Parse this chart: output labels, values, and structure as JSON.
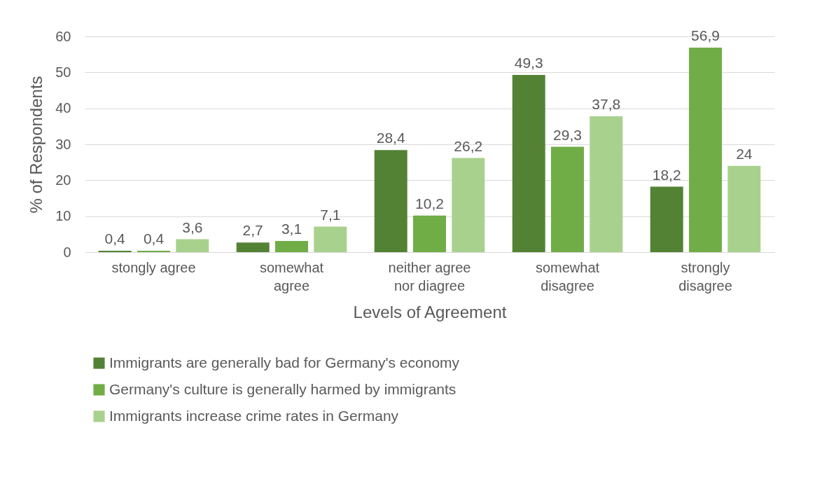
{
  "chart_data": {
    "type": "bar",
    "xlabel": "Levels of Agreement",
    "ylabel": "% of Respondents",
    "categories": [
      "stongly agree",
      "somewhat agree",
      "neither agree nor diagree",
      "somewhat disagree",
      "strongly disagree"
    ],
    "series": [
      {
        "name": "Immigrants are generally bad for Germany's economy",
        "color": "#548235",
        "values": [
          0.4,
          2.7,
          28.4,
          49.3,
          18.2
        ],
        "value_labels": [
          "0,4",
          "2,7",
          "28,4",
          "49,3",
          "18,2"
        ]
      },
      {
        "name": "Germany's culture is generally harmed by immigrants",
        "color": "#70ad47",
        "values": [
          0.4,
          3.1,
          10.2,
          29.3,
          56.9
        ],
        "value_labels": [
          "0,4",
          "3,1",
          "10,2",
          "29,3",
          "56,9"
        ]
      },
      {
        "name": "Immigrants increase crime rates in Germany",
        "color": "#a9d18e",
        "values": [
          3.6,
          7.1,
          26.2,
          37.8,
          24
        ],
        "value_labels": [
          "3,6",
          "7,1",
          "26,2",
          "37,8",
          "24"
        ]
      }
    ],
    "ylim": [
      0,
      60
    ],
    "yticks": [
      0,
      10,
      20,
      30,
      40,
      50,
      60
    ],
    "grid": "y",
    "legend": "bottom"
  }
}
